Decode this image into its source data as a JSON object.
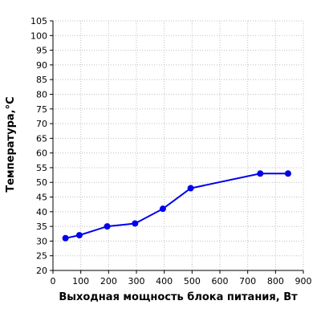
{
  "chart_data": {
    "type": "line",
    "xlabel": "Выходная мощность блока питания, Вт",
    "ylabel": "Температура,°C",
    "xlim": [
      0,
      900
    ],
    "ylim": [
      20,
      105
    ],
    "xticks": [
      0,
      100,
      200,
      300,
      400,
      500,
      600,
      700,
      800,
      900
    ],
    "yticks": [
      20,
      25,
      30,
      35,
      40,
      45,
      50,
      55,
      60,
      65,
      70,
      75,
      80,
      85,
      90,
      95,
      100,
      105
    ],
    "grid": true,
    "legend": "none",
    "colors": {
      "series": "#0000ee",
      "grid": "#bfbfbf",
      "axis": "#000000"
    },
    "series": [
      {
        "x": [
          45,
          95,
          195,
          295,
          395,
          495,
          745,
          845
        ],
        "y": [
          31,
          32,
          35,
          36,
          41,
          48,
          53,
          53
        ]
      }
    ]
  }
}
